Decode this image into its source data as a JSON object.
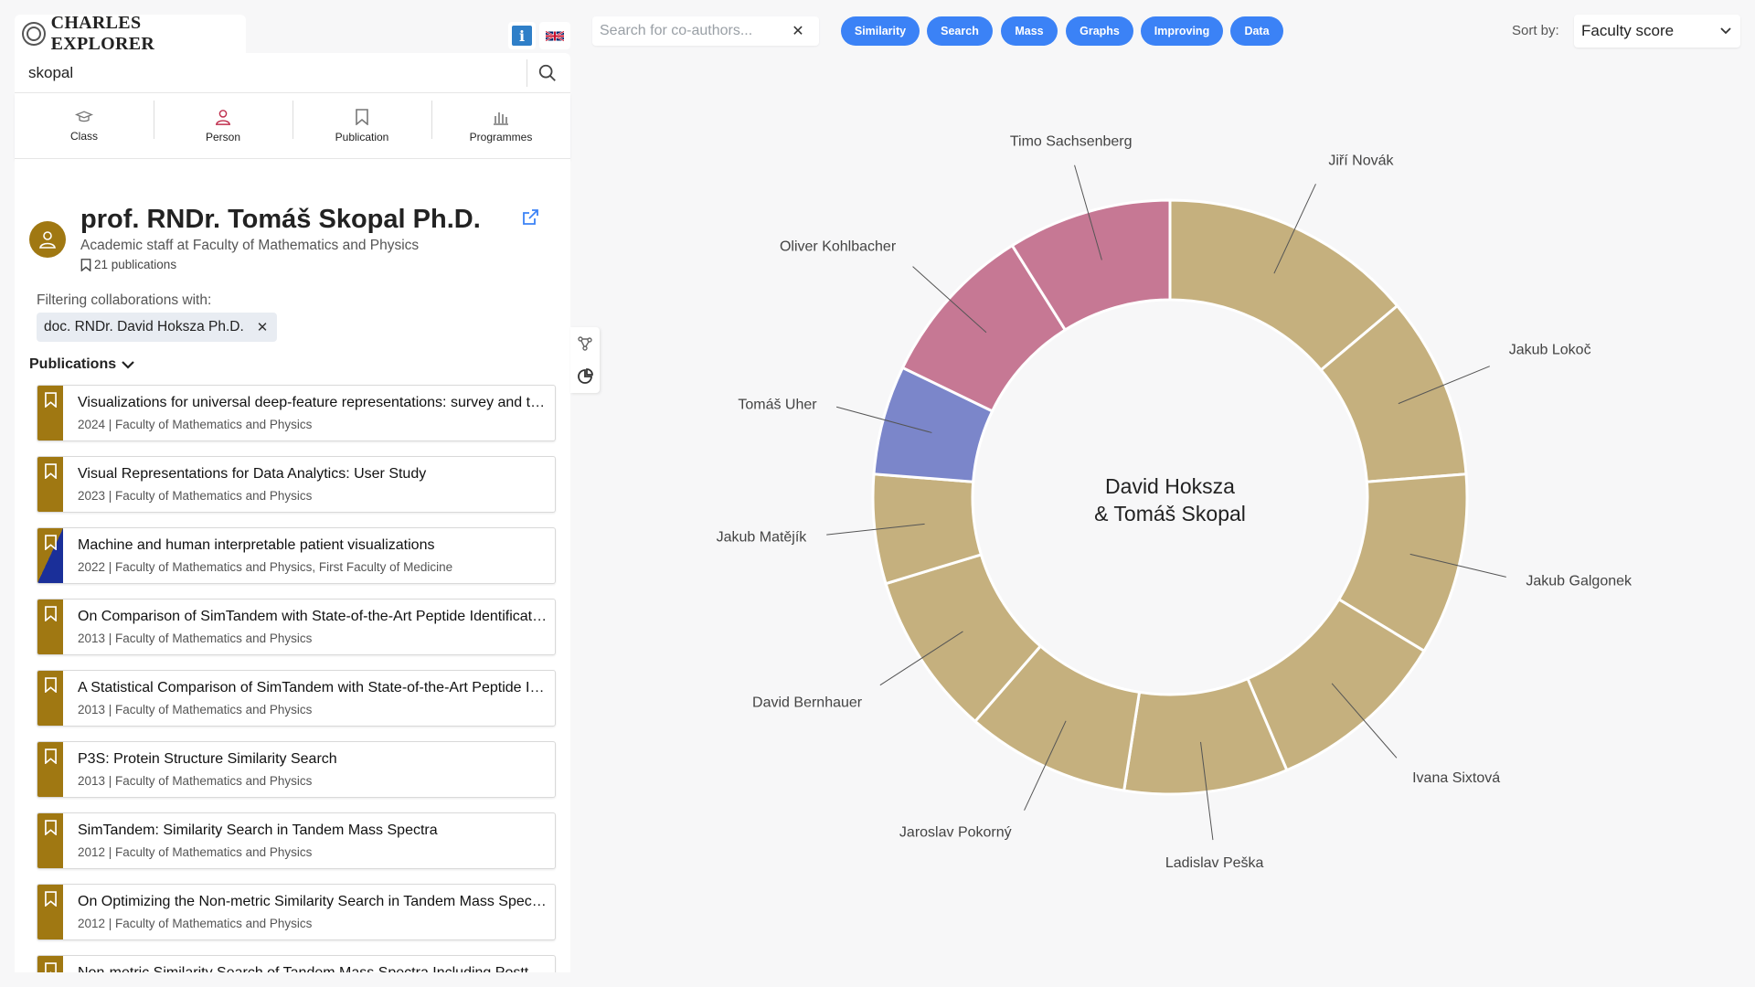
{
  "app": {
    "brand": "CHARLES EXPLORER",
    "info_label": "i"
  },
  "search": {
    "value": "skopal"
  },
  "nav": [
    {
      "label": "Class",
      "icon": "graduation-cap-icon"
    },
    {
      "label": "Person",
      "icon": "person-icon"
    },
    {
      "label": "Publication",
      "icon": "bookmark-icon"
    },
    {
      "label": "Programmes",
      "icon": "building-icon"
    }
  ],
  "profile": {
    "name": "prof. RNDr. Tomáš Skopal Ph.D.",
    "role": "Academic staff at Faculty of Mathematics and Physics",
    "publications_count": "21 publications",
    "filter_label": "Filtering collaborations with:",
    "filter_chip": "doc. RNDr. David Hoksza Ph.D.",
    "chip_close": "✕"
  },
  "publications_header": "Publications",
  "publications": [
    {
      "title": "Visualizations for universal deep-feature representations: survey and taxonomy",
      "meta": "2024 | Faculty of Mathematics and Physics",
      "dual": false
    },
    {
      "title": "Visual Representations for Data Analytics: User Study",
      "meta": "2023 | Faculty of Mathematics and Physics",
      "dual": false
    },
    {
      "title": "Machine and human interpretable patient visualizations",
      "meta": "2022 | Faculty of Mathematics and Physics, First Faculty of Medicine",
      "dual": true
    },
    {
      "title": "On Comparison of SimTandem with State-of-the-Art Peptide Identification Tools",
      "meta": "2013 | Faculty of Mathematics and Physics",
      "dual": false
    },
    {
      "title": "A Statistical Comparison of SimTandem with State-of-the-Art Peptide Identification Tools",
      "meta": "2013 | Faculty of Mathematics and Physics",
      "dual": false
    },
    {
      "title": "P3S: Protein Structure Similarity Search",
      "meta": "2013 | Faculty of Mathematics and Physics",
      "dual": false
    },
    {
      "title": "SimTandem: Similarity Search in Tandem Mass Spectra",
      "meta": "2012 | Faculty of Mathematics and Physics",
      "dual": false
    },
    {
      "title": "On Optimizing the Non-metric Similarity Search in Tandem Mass Spectra",
      "meta": "2012 | Faculty of Mathematics and Physics",
      "dual": false
    },
    {
      "title": "Non-metric Similarity Search of Tandem Mass Spectra Including Posttranslational Modifications",
      "meta": "",
      "dual": false
    }
  ],
  "coauthor_search": {
    "placeholder": "Search for co-authors...",
    "clear": "✕"
  },
  "tags": [
    "Similarity",
    "Search",
    "Mass",
    "Graphs",
    "Improving",
    "Data"
  ],
  "sort": {
    "label": "Sort by:",
    "value": "Faculty score"
  },
  "colors": {
    "accent": "#3b82f6",
    "faculty_gold": "#a07812",
    "medicine_blue": "#1a2f99",
    "slice_tan": "#c5b07e",
    "slice_pink": "#c67894",
    "slice_blue": "#7b86ca"
  },
  "chart_data": {
    "type": "donut",
    "center_line1": "David Hoksza",
    "center_line2": "& Tomáš Skopal",
    "slices": [
      {
        "name": "Jiří Novák",
        "value": 7,
        "color": "tan"
      },
      {
        "name": "Jakub Lokoč",
        "value": 5,
        "color": "tan"
      },
      {
        "name": "Jakub Galgonek",
        "value": 5,
        "color": "tan"
      },
      {
        "name": "Ivana Sixtová",
        "value": 5,
        "color": "tan"
      },
      {
        "name": "Ladislav Peška",
        "value": 4.5,
        "color": "tan"
      },
      {
        "name": "Jaroslav Pokorný",
        "value": 4.5,
        "color": "tan"
      },
      {
        "name": "David Bernhauer",
        "value": 4.5,
        "color": "tan"
      },
      {
        "name": "Jakub Matějík",
        "value": 3,
        "color": "tan"
      },
      {
        "name": "Tomáš Uher",
        "value": 3,
        "color": "blue"
      },
      {
        "name": "Oliver Kohlbacher",
        "value": 4.5,
        "color": "pink"
      },
      {
        "name": "Timo Sachsenberg",
        "value": 4.5,
        "color": "pink"
      }
    ]
  }
}
